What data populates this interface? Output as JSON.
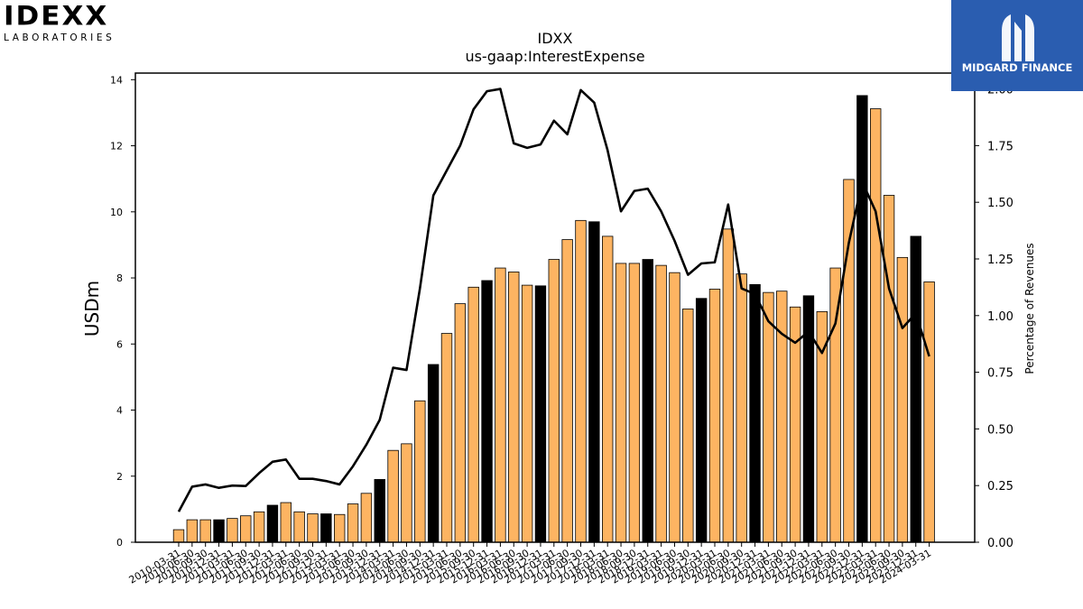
{
  "brand": {
    "left_logo_word": "IDEXX",
    "left_logo_sub": "LABORATORIES",
    "right_logo_name": "MIDGARD FINANCE",
    "bar_color_default": "#fdb462",
    "bar_color_highlight": "#000000",
    "line_color": "#000000"
  },
  "chart_data": {
    "type": "bar",
    "title": "IDXX",
    "subtitle": "us-gaap:InterestExpense",
    "ylabel": "USDm",
    "y2label": "Percentage of Revenues",
    "ylim": [
      0,
      14.2
    ],
    "y2lim": [
      0,
      2.07
    ],
    "yticks": [
      "0",
      "2",
      "4",
      "6",
      "8",
      "10",
      "12",
      "14"
    ],
    "y2ticks": [
      "0.00",
      "0.25",
      "0.50",
      "0.75",
      "1.00",
      "1.25",
      "1.50",
      "1.75",
      "2.00"
    ],
    "categories": [
      "2010-03-31",
      "2010-06-30",
      "2010-09-30",
      "2010-12-31",
      "2011-03-31",
      "2011-06-30",
      "2011-09-30",
      "2011-12-31",
      "2012-03-31",
      "2012-06-30",
      "2012-09-30",
      "2012-12-31",
      "2013-03-31",
      "2013-06-30",
      "2013-09-30",
      "2013-12-31",
      "2014-03-31",
      "2014-06-30",
      "2014-09-30",
      "2014-12-31",
      "2015-03-31",
      "2015-06-30",
      "2015-09-30",
      "2015-12-31",
      "2016-03-31",
      "2016-06-30",
      "2016-09-30",
      "2016-12-31",
      "2017-03-31",
      "2017-06-30",
      "2017-09-30",
      "2017-12-31",
      "2018-03-31",
      "2018-06-30",
      "2018-09-30",
      "2018-12-31",
      "2019-03-31",
      "2019-06-30",
      "2019-09-30",
      "2019-12-31",
      "2020-03-31",
      "2020-06-30",
      "2020-09-30",
      "2020-12-31",
      "2021-03-31",
      "2021-06-30",
      "2021-09-30",
      "2021-12-31",
      "2022-03-31",
      "2022-06-30",
      "2022-09-30",
      "2022-12-31",
      "2023-03-31",
      "2023-06-30",
      "2023-09-30",
      "2023-12-31",
      "2024-03-31"
    ],
    "series": [
      {
        "type": "bar",
        "axis": "left",
        "values": [
          0.38,
          0.68,
          0.68,
          0.68,
          0.72,
          0.8,
          0.92,
          1.12,
          1.2,
          0.92,
          0.86,
          0.86,
          0.84,
          1.16,
          1.48,
          1.9,
          2.78,
          2.98,
          4.28,
          5.38,
          6.32,
          7.22,
          7.72,
          7.92,
          8.3,
          8.18,
          7.78,
          7.76,
          8.56,
          9.16,
          9.74,
          9.7,
          9.26,
          8.44,
          8.44,
          8.56,
          8.38,
          8.16,
          7.06,
          7.38,
          7.66,
          9.48,
          8.12,
          7.8,
          7.56,
          7.6,
          7.12,
          7.46,
          6.98,
          8.3,
          10.98,
          13.52,
          13.12,
          10.5,
          8.62,
          9.26,
          7.88
        ],
        "highlight": [
          false,
          false,
          false,
          true,
          false,
          false,
          false,
          true,
          false,
          false,
          false,
          true,
          false,
          false,
          false,
          true,
          false,
          false,
          false,
          true,
          false,
          false,
          false,
          true,
          false,
          false,
          false,
          true,
          false,
          false,
          false,
          true,
          false,
          false,
          false,
          true,
          false,
          false,
          false,
          true,
          false,
          false,
          false,
          true,
          false,
          false,
          false,
          true,
          false,
          false,
          false,
          true,
          false,
          false,
          false,
          true,
          false
        ]
      },
      {
        "type": "line",
        "axis": "right",
        "values": [
          0.135,
          0.245,
          0.255,
          0.24,
          0.25,
          0.248,
          0.305,
          0.355,
          0.365,
          0.28,
          0.28,
          0.27,
          0.255,
          0.335,
          0.43,
          0.54,
          0.77,
          0.76,
          1.12,
          1.53,
          1.64,
          1.75,
          1.91,
          1.99,
          2.0,
          1.76,
          1.74,
          1.755,
          1.86,
          1.8,
          1.995,
          1.94,
          1.73,
          1.46,
          1.55,
          1.56,
          1.46,
          1.33,
          1.18,
          1.23,
          1.235,
          1.49,
          1.12,
          1.095,
          0.975,
          0.92,
          0.88,
          0.93,
          0.835,
          0.965,
          1.32,
          1.59,
          1.46,
          1.12,
          0.945,
          1.01,
          0.82
        ]
      }
    ]
  }
}
